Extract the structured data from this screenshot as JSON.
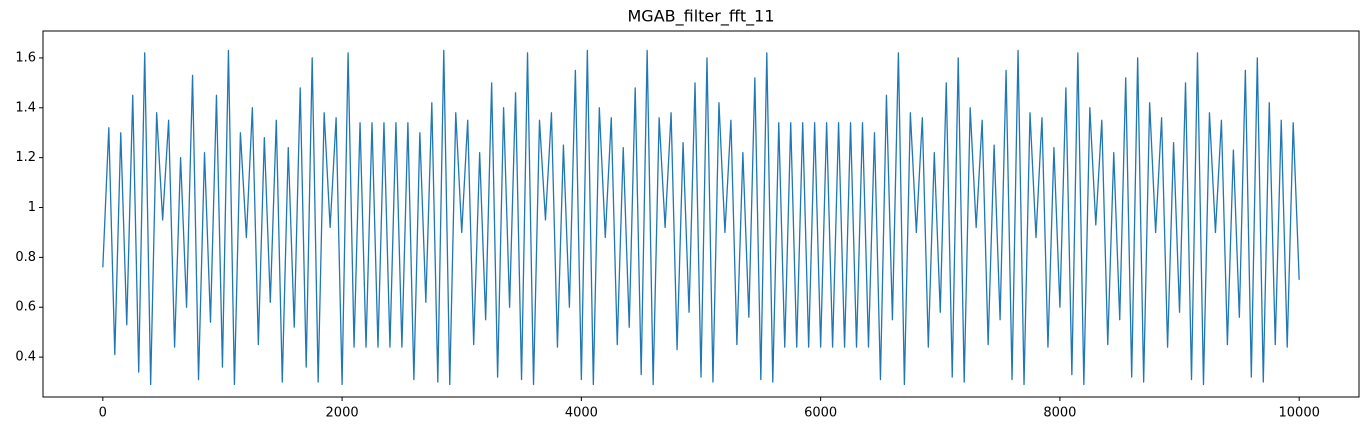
{
  "chart_data": {
    "type": "line",
    "title": "MGAB_filter_fft_11",
    "x": [
      0,
      50,
      100,
      150,
      200,
      250,
      300,
      350,
      400,
      450,
      500,
      550,
      600,
      650,
      700,
      750,
      800,
      850,
      900,
      950,
      1000,
      1050,
      1100,
      1150,
      1200,
      1250,
      1300,
      1350,
      1400,
      1450,
      1500,
      1550,
      1600,
      1650,
      1700,
      1750,
      1800,
      1850,
      1900,
      1950,
      2000,
      2050,
      2100,
      2150,
      2200,
      2250,
      2300,
      2350,
      2400,
      2450,
      2500,
      2550,
      2600,
      2650,
      2700,
      2750,
      2800,
      2850,
      2900,
      2950,
      3000,
      3050,
      3100,
      3150,
      3200,
      3250,
      3300,
      3350,
      3400,
      3450,
      3500,
      3550,
      3600,
      3650,
      3700,
      3750,
      3800,
      3850,
      3900,
      3950,
      4000,
      4050,
      4100,
      4150,
      4200,
      4250,
      4300,
      4350,
      4400,
      4450,
      4500,
      4550,
      4600,
      4650,
      4700,
      4750,
      4800,
      4850,
      4900,
      4950,
      5000,
      5050,
      5100,
      5150,
      5200,
      5250,
      5300,
      5350,
      5400,
      5450,
      5500,
      5550,
      5600,
      5650,
      5700,
      5750,
      5800,
      5850,
      5900,
      5950,
      6000,
      6050,
      6100,
      6150,
      6200,
      6250,
      6300,
      6350,
      6400,
      6450,
      6500,
      6550,
      6600,
      6650,
      6700,
      6750,
      6800,
      6850,
      6900,
      6950,
      7000,
      7050,
      7100,
      7150,
      7200,
      7250,
      7300,
      7350,
      7400,
      7450,
      7500,
      7550,
      7600,
      7650,
      7700,
      7750,
      7800,
      7850,
      7900,
      7950,
      8000,
      8050,
      8100,
      8150,
      8200,
      8250,
      8300,
      8350,
      8400,
      8450,
      8500,
      8550,
      8600,
      8650,
      8700,
      8750,
      8800,
      8850,
      8900,
      8950,
      9000,
      9050,
      9100,
      9150,
      9200,
      9250,
      9300,
      9350,
      9400,
      9450,
      9500,
      9550,
      9600,
      9650,
      9700,
      9750,
      9800,
      9850,
      9900,
      9950,
      10000
    ],
    "series": [
      {
        "color": "#1f77b4",
        "values": [
          0.76,
          1.32,
          0.41,
          1.3,
          0.53,
          1.45,
          0.34,
          1.62,
          0.29,
          1.38,
          0.95,
          1.35,
          0.44,
          1.2,
          0.6,
          1.53,
          0.31,
          1.22,
          0.54,
          1.45,
          0.36,
          1.63,
          0.29,
          1.3,
          0.88,
          1.4,
          0.45,
          1.28,
          0.62,
          1.35,
          0.3,
          1.24,
          0.52,
          1.48,
          0.36,
          1.6,
          0.3,
          1.38,
          0.92,
          1.36,
          0.29,
          1.62,
          0.44,
          1.34,
          0.44,
          1.34,
          0.44,
          1.34,
          0.44,
          1.34,
          0.44,
          1.34,
          0.31,
          1.3,
          0.62,
          1.42,
          0.3,
          1.63,
          0.29,
          1.38,
          0.9,
          1.35,
          0.45,
          1.22,
          0.55,
          1.5,
          0.32,
          1.4,
          0.6,
          1.46,
          0.31,
          1.62,
          0.29,
          1.35,
          0.95,
          1.38,
          0.44,
          1.25,
          0.6,
          1.55,
          0.31,
          1.63,
          0.29,
          1.4,
          0.88,
          1.36,
          0.45,
          1.24,
          0.52,
          1.48,
          0.33,
          1.63,
          0.29,
          1.36,
          0.92,
          1.38,
          0.43,
          1.26,
          0.58,
          1.5,
          0.32,
          1.6,
          0.3,
          1.42,
          0.9,
          1.35,
          0.45,
          1.22,
          0.56,
          1.52,
          0.31,
          1.62,
          0.3,
          1.34,
          0.44,
          1.34,
          0.44,
          1.34,
          0.44,
          1.34,
          0.44,
          1.34,
          0.44,
          1.34,
          0.44,
          1.34,
          0.44,
          1.34,
          0.44,
          1.3,
          0.31,
          1.45,
          0.55,
          1.62,
          0.29,
          1.38,
          0.9,
          1.36,
          0.44,
          1.22,
          0.58,
          1.5,
          0.32,
          1.6,
          0.3,
          1.4,
          0.92,
          1.35,
          0.45,
          1.25,
          0.55,
          1.55,
          0.31,
          1.63,
          0.29,
          1.38,
          0.88,
          1.36,
          0.44,
          1.24,
          0.6,
          1.48,
          0.33,
          1.62,
          0.29,
          1.4,
          0.93,
          1.35,
          0.45,
          1.22,
          0.55,
          1.52,
          0.32,
          1.6,
          0.3,
          1.42,
          0.9,
          1.36,
          0.44,
          1.26,
          0.58,
          1.5,
          0.31,
          1.62,
          0.29,
          1.38,
          0.9,
          1.35,
          0.45,
          1.23,
          0.56,
          1.55,
          0.32,
          1.6,
          0.3,
          1.42,
          0.45,
          1.35,
          0.44,
          1.34,
          0.71
        ]
      }
    ],
    "xlim": [
      -500,
      10500
    ],
    "xticks": [
      0,
      2000,
      4000,
      6000,
      8000,
      10000
    ],
    "ylim": [
      0.24,
      1.708
    ],
    "yticks": [
      0.4,
      0.6,
      0.8,
      1.0,
      1.2,
      1.4,
      1.6
    ]
  }
}
